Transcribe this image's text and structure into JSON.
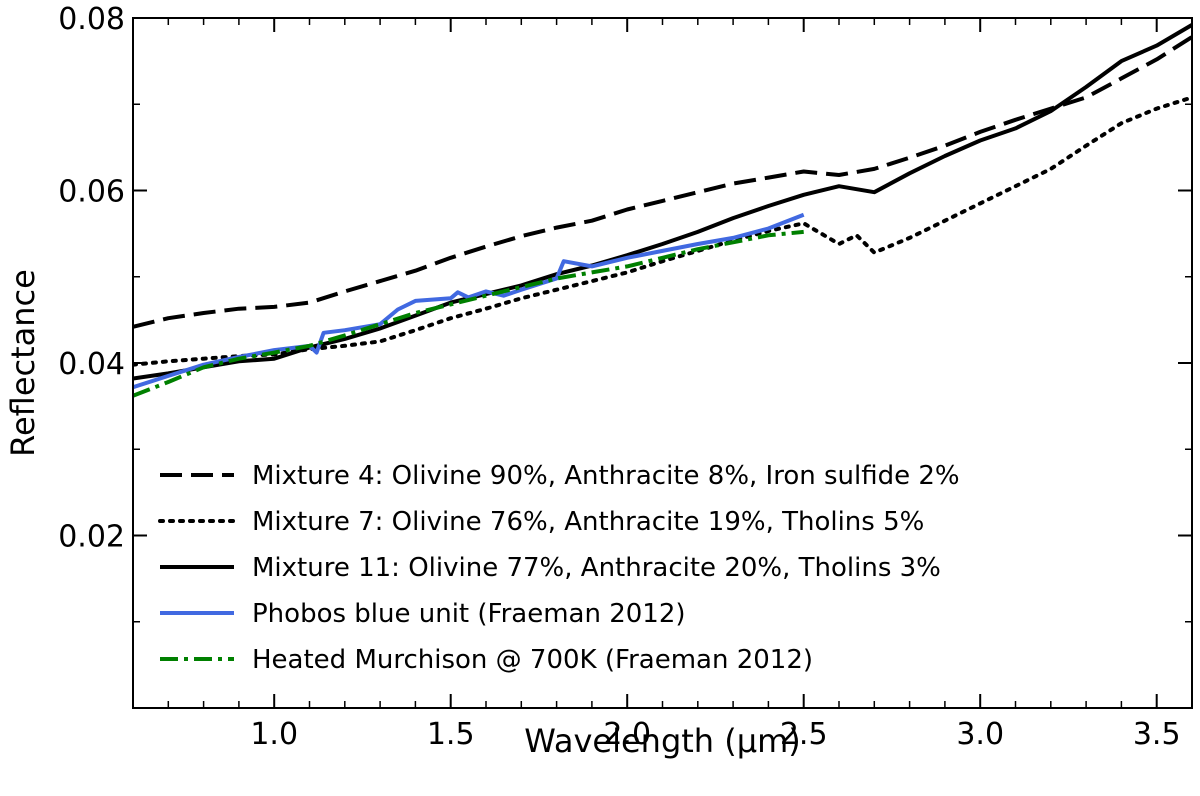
{
  "chart_data": {
    "type": "line",
    "xlabel": "Wavelength (µm)",
    "ylabel": "Reflectance",
    "xlim": [
      0.6,
      3.6
    ],
    "ylim": [
      0.0,
      0.08
    ],
    "xticks": [
      1.0,
      1.5,
      2.0,
      2.5,
      3.0,
      3.5
    ],
    "xtick_labels": [
      "1.0",
      "1.5",
      "2.0",
      "2.5",
      "3.0",
      "3.5"
    ],
    "yticks": [
      0.02,
      0.04,
      0.06,
      0.08
    ],
    "ytick_labels": [
      "0.02",
      "0.04",
      "0.06",
      "0.08"
    ],
    "legend_position": "lower-right",
    "grid": false,
    "series": [
      {
        "name": "Mixture 4: Olivine 90%, Anthracite 8%, Iron sulfide 2%",
        "color": "#000000",
        "style": "dashed",
        "x": [
          0.6,
          0.7,
          0.8,
          0.9,
          1.0,
          1.1,
          1.2,
          1.3,
          1.4,
          1.5,
          1.6,
          1.7,
          1.8,
          1.9,
          2.0,
          2.1,
          2.2,
          2.3,
          2.4,
          2.5,
          2.6,
          2.7,
          2.8,
          2.9,
          3.0,
          3.1,
          3.2,
          3.3,
          3.4,
          3.5,
          3.6
        ],
        "y": [
          0.0442,
          0.0452,
          0.0458,
          0.0463,
          0.0465,
          0.047,
          0.0483,
          0.0495,
          0.0507,
          0.0522,
          0.0535,
          0.0547,
          0.0557,
          0.0565,
          0.0578,
          0.0588,
          0.0598,
          0.0608,
          0.0615,
          0.0622,
          0.0618,
          0.0625,
          0.0638,
          0.0652,
          0.0668,
          0.0682,
          0.0695,
          0.0708,
          0.073,
          0.0752,
          0.0778
        ]
      },
      {
        "name": "Mixture 7: Olivine 76%, Anthracite 19%, Tholins 5%",
        "color": "#000000",
        "style": "dotted",
        "x": [
          0.6,
          0.7,
          0.8,
          0.9,
          1.0,
          1.1,
          1.2,
          1.3,
          1.4,
          1.5,
          1.6,
          1.7,
          1.8,
          1.9,
          2.0,
          2.1,
          2.2,
          2.3,
          2.4,
          2.5,
          2.6,
          2.65,
          2.7,
          2.8,
          2.9,
          3.0,
          3.1,
          3.2,
          3.3,
          3.4,
          3.5,
          3.6
        ],
        "y": [
          0.0398,
          0.0402,
          0.0405,
          0.0408,
          0.041,
          0.0416,
          0.042,
          0.0425,
          0.0438,
          0.0452,
          0.0463,
          0.0475,
          0.0485,
          0.0495,
          0.0505,
          0.0518,
          0.053,
          0.0542,
          0.0553,
          0.0562,
          0.0538,
          0.0548,
          0.0528,
          0.0545,
          0.0565,
          0.0585,
          0.0605,
          0.0625,
          0.0652,
          0.0678,
          0.0695,
          0.0708
        ]
      },
      {
        "name": "Mixture 11: Olivine 77%, Anthracite 20%, Tholins 3%",
        "color": "#000000",
        "style": "solid",
        "x": [
          0.6,
          0.7,
          0.8,
          0.9,
          1.0,
          1.1,
          1.2,
          1.3,
          1.4,
          1.5,
          1.6,
          1.7,
          1.8,
          1.9,
          2.0,
          2.1,
          2.2,
          2.3,
          2.4,
          2.5,
          2.6,
          2.7,
          2.8,
          2.9,
          3.0,
          3.1,
          3.2,
          3.3,
          3.4,
          3.5,
          3.6
        ],
        "y": [
          0.0382,
          0.0388,
          0.0395,
          0.0402,
          0.0405,
          0.0418,
          0.0428,
          0.044,
          0.0455,
          0.047,
          0.048,
          0.049,
          0.0503,
          0.0513,
          0.0525,
          0.0538,
          0.0552,
          0.0568,
          0.0582,
          0.0595,
          0.0605,
          0.0598,
          0.062,
          0.064,
          0.0658,
          0.0672,
          0.0692,
          0.072,
          0.075,
          0.0768,
          0.0792
        ]
      },
      {
        "name": "Phobos blue unit (Fraeman 2012)",
        "color": "#4169e1",
        "style": "solid",
        "x": [
          0.6,
          0.7,
          0.8,
          0.9,
          1.0,
          1.1,
          1.12,
          1.14,
          1.2,
          1.3,
          1.35,
          1.4,
          1.5,
          1.52,
          1.55,
          1.6,
          1.65,
          1.7,
          1.8,
          1.82,
          1.9,
          2.0,
          2.1,
          2.2,
          2.3,
          2.4,
          2.5
        ],
        "y": [
          0.0372,
          0.0385,
          0.0398,
          0.0407,
          0.0415,
          0.042,
          0.0412,
          0.0435,
          0.0438,
          0.0445,
          0.0462,
          0.0472,
          0.0475,
          0.0482,
          0.0476,
          0.0483,
          0.0478,
          0.0485,
          0.0498,
          0.0518,
          0.0512,
          0.0522,
          0.053,
          0.0538,
          0.0545,
          0.0556,
          0.0572
        ]
      },
      {
        "name": "Heated Murchison @ 700K (Fraeman 2012)",
        "color": "#008000",
        "style": "dashdot",
        "x": [
          0.6,
          0.7,
          0.8,
          0.9,
          1.0,
          1.1,
          1.2,
          1.3,
          1.4,
          1.5,
          1.6,
          1.7,
          1.8,
          1.9,
          2.0,
          2.1,
          2.2,
          2.3,
          2.4,
          2.5
        ],
        "y": [
          0.0362,
          0.0378,
          0.0395,
          0.0405,
          0.0412,
          0.042,
          0.0432,
          0.0445,
          0.0458,
          0.0468,
          0.0478,
          0.0488,
          0.0498,
          0.0505,
          0.0512,
          0.0522,
          0.0532,
          0.054,
          0.0548,
          0.0552
        ]
      }
    ]
  }
}
